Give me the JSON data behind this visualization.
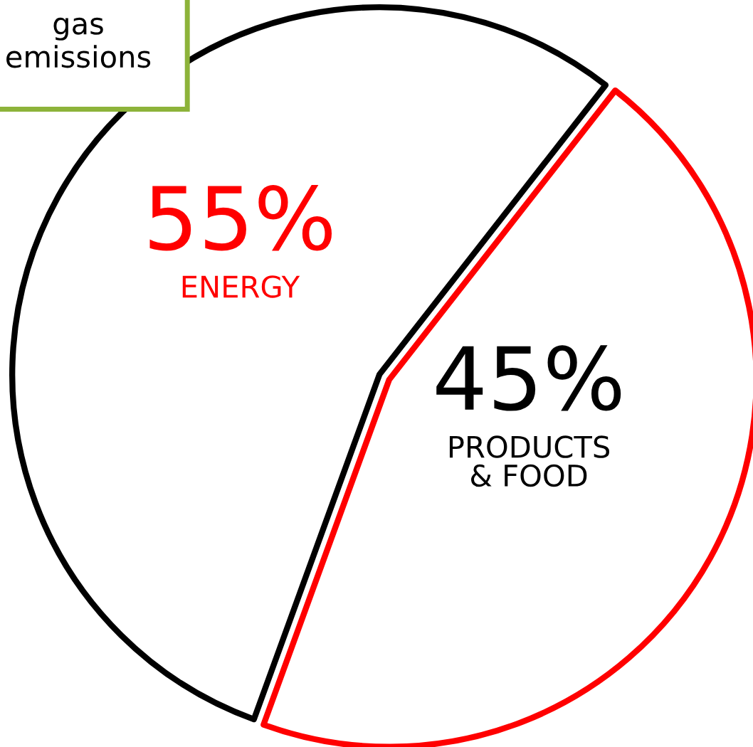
{
  "chart_data": {
    "type": "pie",
    "categories": [
      "ENERGY",
      "PRODUCTS\n& FOOD"
    ],
    "values": [
      55,
      45
    ],
    "value_labels": [
      "55%",
      "45%"
    ],
    "colors": [
      "#000000",
      "#ff0000"
    ],
    "annotations": [
      "gas\nemissions"
    ]
  }
}
